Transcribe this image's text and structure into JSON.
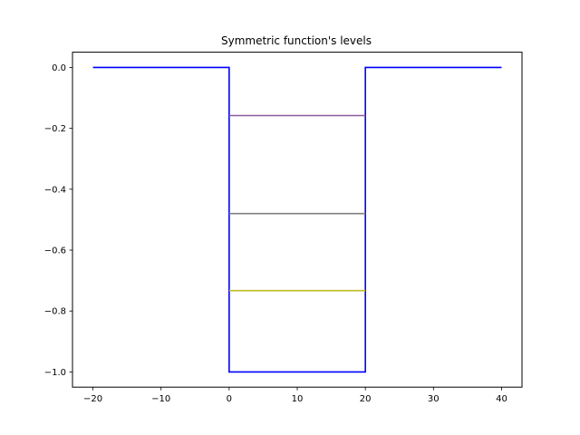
{
  "chart_data": {
    "type": "line",
    "title": "Symmetric function's levels",
    "xlabel": "",
    "ylabel": "",
    "xlim": [
      -23,
      43
    ],
    "ylim": [
      -1.05,
      0.05
    ],
    "xticks": [
      -20,
      -10,
      0,
      10,
      20,
      30,
      40
    ],
    "yticks": [
      0.0,
      -0.2,
      -0.4,
      -0.6,
      -0.8,
      -1.0
    ],
    "xtick_labels": [
      "−20",
      "−10",
      "0",
      "10",
      "20",
      "30",
      "40"
    ],
    "ytick_labels": [
      "0.0",
      "−0.2",
      "−0.4",
      "−0.6",
      "−0.8",
      "−1.0"
    ],
    "grid": false,
    "series": [
      {
        "color": "#0000ff",
        "x": [
          -20,
          0,
          0,
          20,
          20,
          40
        ],
        "y": [
          0,
          0,
          -1,
          -1,
          0,
          0
        ]
      },
      {
        "color": "#8c5a9e",
        "x": [
          0,
          20
        ],
        "y": [
          -0.158,
          -0.158
        ]
      },
      {
        "color": "#808080",
        "x": [
          0,
          20
        ],
        "y": [
          -0.48,
          -0.48
        ]
      },
      {
        "color": "#bcbd22",
        "x": [
          0,
          20
        ],
        "y": [
          -0.733,
          -0.733
        ]
      }
    ]
  }
}
